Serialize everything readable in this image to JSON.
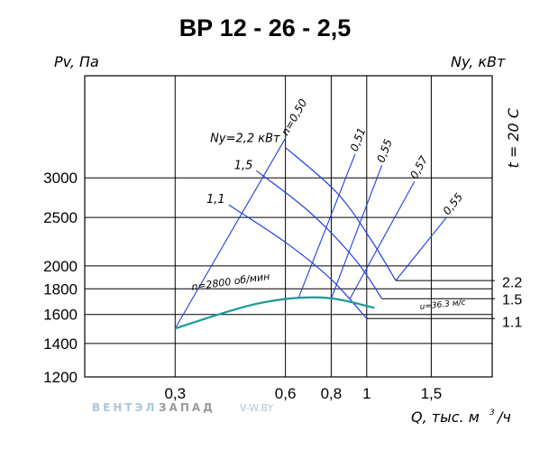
{
  "chart_data": {
    "type": "line",
    "title": "ВР 12 - 26 - 2,5",
    "y_axis_label": "Pv, Па",
    "right_axis_label": "Ny, кВт",
    "x_axis_label": "Q, тыс. м",
    "x_axis_label_exp": "3",
    "x_axis_label_tail": "/ч",
    "temperature_label": "t = 20 С",
    "x_scale": "log",
    "y_scale": "log",
    "x_ticks": [
      "0,3",
      "0,6",
      "0,8",
      "1",
      "1,5"
    ],
    "x_tick_values": [
      0.3,
      0.6,
      0.8,
      1.0,
      1.5
    ],
    "y_ticks": [
      "3000",
      "2500",
      "2000",
      "1800",
      "1600",
      "1400",
      "1200"
    ],
    "y_tick_values": [
      3000,
      2500,
      2000,
      1800,
      1600,
      1400,
      1200
    ],
    "xlim": [
      0.17,
      2.2
    ],
    "ylim": [
      1200,
      4800
    ],
    "power_ticks": [
      "2.2",
      "1.5",
      "1.1"
    ],
    "power_tick_values": [
      1860,
      1720,
      1550
    ],
    "speed_label": "n=2800 об/мин",
    "velocity_label": "u=36.3 м/с",
    "power_curve_label_prefix": "Ny=",
    "power_curve_label_unit": "кВт",
    "series": [
      {
        "label": "2,2",
        "kind": "power",
        "x": [
          0.6,
          0.83,
          1.03,
          1.2
        ],
        "y": [
          3450,
          2800,
          2250,
          1870
        ]
      },
      {
        "label": "1,5",
        "kind": "power",
        "x": [
          0.5,
          0.7,
          0.93,
          1.1
        ],
        "y": [
          3100,
          2560,
          2060,
          1720
        ]
      },
      {
        "label": "1,1",
        "kind": "power",
        "x": [
          0.42,
          0.6,
          0.8,
          1.0
        ],
        "y": [
          2650,
          2230,
          1880,
          1570
        ]
      },
      {
        "label": "n=2800",
        "kind": "pressure",
        "x": [
          0.3,
          0.5,
          0.75,
          1.05
        ],
        "y": [
          1500,
          1680,
          1730,
          1650
        ]
      }
    ],
    "efficiency_lines": [
      {
        "label": "n=0,50",
        "x": [
          0.3,
          0.6
        ],
        "y": [
          1500,
          3600
        ]
      },
      {
        "label": "0,51",
        "x": [
          0.65,
          0.93
        ],
        "y": [
          1720,
          3350
        ]
      },
      {
        "label": "0,55",
        "x": [
          0.8,
          1.1
        ],
        "y": [
          1720,
          3180
        ]
      },
      {
        "label": "0,57",
        "x": [
          0.9,
          1.35
        ],
        "y": [
          1720,
          2950
        ]
      },
      {
        "label": "0,55",
        "x": [
          1.2,
          1.65
        ],
        "y": [
          1870,
          2500
        ]
      }
    ]
  },
  "watermark": {
    "brand_part1": "ВЕНТЭЛ",
    "brand_part2": "ЗАПАД",
    "site": "V-W.BY"
  }
}
